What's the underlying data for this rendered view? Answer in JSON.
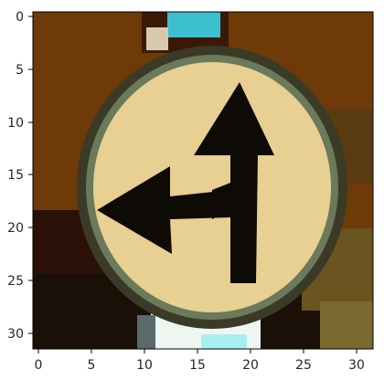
{
  "axes": {
    "x_ticks": [
      "0",
      "5",
      "10",
      "15",
      "20",
      "25",
      "30"
    ],
    "y_ticks": [
      "0",
      "5",
      "10",
      "15",
      "20",
      "25",
      "30"
    ]
  },
  "image": {
    "pixel_grid": [
      32,
      32
    ],
    "palette": {
      "background_brown": "#6e3a08",
      "dark_brown": "#3a1a06",
      "sign_cream": "#e8cf92",
      "sign_edge": "#5a6a4a",
      "arrow_black": "#0e0a06",
      "top_cyan": "#3cc0cf",
      "bottom_white": "#eef6f2",
      "ground_dark": "#1a1008",
      "olive": "#7a6a30"
    }
  }
}
